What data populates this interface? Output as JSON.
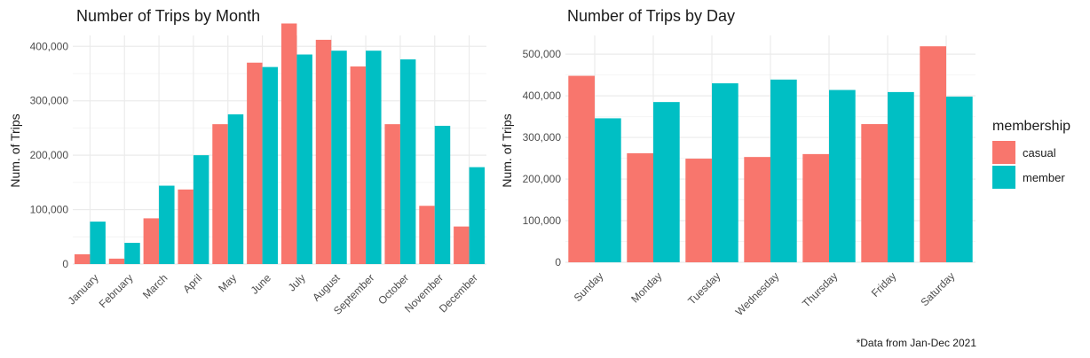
{
  "colors": {
    "casual": "#F8766D",
    "member": "#00BFC4",
    "grid_major": "#ebebeb",
    "grid_minor": "#f4f4f4"
  },
  "legend": {
    "title": "membership",
    "items": [
      {
        "label": "casual",
        "color": "#F8766D"
      },
      {
        "label": "member",
        "color": "#00BFC4"
      }
    ]
  },
  "caption": "*Data from Jan-Dec 2021",
  "chart_data": [
    {
      "type": "bar",
      "title": "Number of Trips by Month",
      "xlabel": "",
      "ylabel": "Num. of Trips",
      "ylim": [
        0,
        420000
      ],
      "yticks": [
        0,
        100000,
        200000,
        300000,
        400000
      ],
      "ytick_labels": [
        "0",
        "100,000",
        "200,000",
        "300,000",
        "400,000"
      ],
      "grid": true,
      "categories": [
        "January",
        "February",
        "March",
        "April",
        "May",
        "June",
        "July",
        "August",
        "September",
        "October",
        "November",
        "December"
      ],
      "series": [
        {
          "name": "casual",
          "values": [
            18000,
            10000,
            84000,
            137000,
            257000,
            370000,
            442000,
            412000,
            363000,
            257000,
            107000,
            69000
          ]
        },
        {
          "name": "member",
          "values": [
            78000,
            39000,
            144000,
            200000,
            275000,
            362000,
            385000,
            392000,
            392000,
            376000,
            254000,
            178000
          ]
        }
      ]
    },
    {
      "type": "bar",
      "title": "Number of Trips by Day",
      "xlabel": "",
      "ylabel": "Num. of Trips",
      "ylim": [
        0,
        545000
      ],
      "yticks": [
        0,
        100000,
        200000,
        300000,
        400000,
        500000
      ],
      "ytick_labels": [
        "0",
        "100,000",
        "200,000",
        "300,000",
        "400,000",
        "500,000"
      ],
      "grid": true,
      "categories": [
        "Sunday",
        "Monday",
        "Tuesday",
        "Wednesday",
        "Thursday",
        "Friday",
        "Saturday"
      ],
      "series": [
        {
          "name": "casual",
          "values": [
            448000,
            262000,
            249000,
            253000,
            260000,
            332000,
            519000
          ]
        },
        {
          "name": "member",
          "values": [
            346000,
            385000,
            430000,
            439000,
            414000,
            409000,
            398000
          ]
        }
      ]
    }
  ]
}
